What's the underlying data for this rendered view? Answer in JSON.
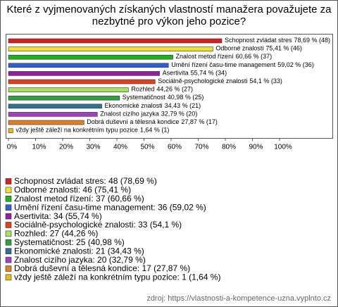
{
  "chart_data": {
    "type": "bar",
    "orientation": "horizontal",
    "title": [
      "Které z vyjmenovaných získaných vlastností manažera považujete za",
      "nezbytné pro výkon jeho pozice?"
    ],
    "categories": [
      "Schopnost zvládat stres",
      "Odborné znalosti",
      "Znalost metod řízení",
      "Umění řízení času-time management",
      "Asertivita",
      "Sociálně-psychologické znalosti",
      "Rozhled",
      "Systematičnost",
      "Ekonomické znalosti",
      "Znalost cizího jazyka",
      "Dobrá duševní a tělesná kondice",
      "vždy ještě záleží na konkrétním typu pozice"
    ],
    "values": [
      78.69,
      75.41,
      60.66,
      59.02,
      55.74,
      54.1,
      44.26,
      40.98,
      34.43,
      32.79,
      27.87,
      1.64
    ],
    "value_labels": [
      "78,69 % (48)",
      "75,41 % (46)",
      "60,66 % (37)",
      "59,02 % (36)",
      "55,74 % (34)",
      "54,1 % (33)",
      "44,26 % (27)",
      "40,98 % (25)",
      "34,43 % (21)",
      "32,79 % (20)",
      "27,87 % (17)",
      "1,64 % (1)"
    ],
    "colors": [
      "#d42020",
      "#f0e030",
      "#20b020",
      "#3060d0",
      "#9020a0",
      "#e04020",
      "#a8e060",
      "#30a040",
      "#307090",
      "#a040c0",
      "#e08020",
      "#e0c020"
    ],
    "legend_labels": [
      "Schopnost zvládat stres: 48 (78,69 %)",
      "Odborné znalosti: 46 (75,41 %)",
      "Znalost metod řízení: 37 (60,66 %)",
      "Umění řízení času-time management: 36 (59,02 %)",
      "Asertivita: 34 (55,74 %)",
      "Sociálně-psychologické znalosti: 33 (54,1 %)",
      "Rozhled: 27 (44,26 %)",
      "Systematičnost: 25 (40,98 %)",
      "Ekonomické znalosti: 21 (34,43 %)",
      "Znalost cizího jazyka: 20 (32,79 %)",
      "Dobrá duševní a tělesná kondice: 17 (27,87 %)",
      "vždy ještě záleží na konkrétním typu pozice: 1 (1,64 %)"
    ],
    "xlim": [
      0,
      100
    ],
    "xticks": [
      {
        "value": 0,
        "label": "0%"
      },
      {
        "value": 10,
        "label": "10%"
      },
      {
        "value": 20,
        "label": "20%"
      },
      {
        "value": 30,
        "label": "30%"
      },
      {
        "value": 40,
        "label": "40%"
      },
      {
        "value": 50,
        "label": "50%"
      },
      {
        "value": 60,
        "label": "60%"
      },
      {
        "value": 70,
        "label": "70%"
      },
      {
        "value": 80,
        "label": "80%"
      },
      {
        "value": 90,
        "label": "90%"
      },
      {
        "value": 100,
        "label": "100%"
      }
    ],
    "source": "zdroj: https://vlastnosti-a-kompetence-uzna.vyplnto.cz"
  }
}
